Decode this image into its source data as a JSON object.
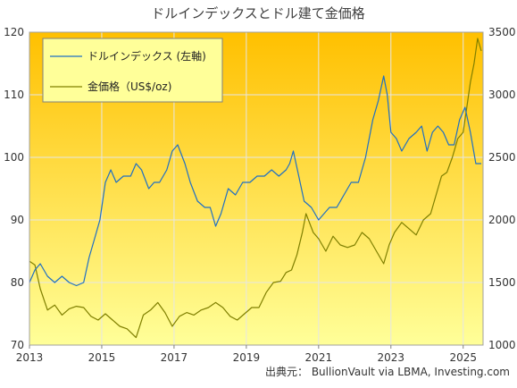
{
  "source_text": "出典元： BullionVault via LBMA, Investing.com",
  "chart_data": {
    "type": "line",
    "title": "ドルインデックスとドル建て金価格",
    "x_ticks": [
      "2013",
      "2015",
      "2017",
      "2019",
      "2021",
      "2023",
      "2025"
    ],
    "xlim": [
      2013.0,
      2025.55
    ],
    "left_axis": {
      "ylim": [
        70,
        120
      ],
      "ticks": [
        "70",
        "80",
        "90",
        "100",
        "110",
        "120"
      ]
    },
    "right_axis": {
      "ylim": [
        1000,
        3500
      ],
      "ticks": [
        "1000",
        "1500",
        "2000",
        "2500",
        "3000",
        "3500"
      ]
    },
    "grid": true,
    "legend_position": "top-left",
    "colors": {
      "background_top": "#ffc000",
      "background_bottom": "#ffff99",
      "dollar_index": "#1f6fc4",
      "gold": "#7f7f00",
      "grid": "#e6e6e6"
    },
    "series": [
      {
        "name": "ドルインデックス (左軸)",
        "axis": "left",
        "x": [
          2013.0,
          2013.15,
          2013.3,
          2013.5,
          2013.7,
          2013.9,
          2014.1,
          2014.3,
          2014.5,
          2014.65,
          2014.8,
          2014.95,
          2015.1,
          2015.25,
          2015.4,
          2015.6,
          2015.8,
          2015.95,
          2016.1,
          2016.3,
          2016.45,
          2016.6,
          2016.8,
          2016.95,
          2017.1,
          2017.3,
          2017.45,
          2017.65,
          2017.85,
          2018.0,
          2018.15,
          2018.3,
          2018.5,
          2018.7,
          2018.9,
          2019.1,
          2019.3,
          2019.5,
          2019.7,
          2019.9,
          2020.1,
          2020.2,
          2020.3,
          2020.45,
          2020.6,
          2020.8,
          2021.0,
          2021.15,
          2021.3,
          2021.5,
          2021.7,
          2021.9,
          2022.1,
          2022.3,
          2022.5,
          2022.65,
          2022.8,
          2022.9,
          2023.0,
          2023.15,
          2023.3,
          2023.5,
          2023.7,
          2023.85,
          2024.0,
          2024.15,
          2024.3,
          2024.45,
          2024.6,
          2024.75,
          2024.9,
          2025.05,
          2025.2,
          2025.35,
          2025.5
        ],
        "values": [
          80,
          82,
          83,
          81,
          80,
          81,
          80,
          79.5,
          80,
          84,
          87,
          90,
          96,
          98,
          96,
          97,
          97,
          99,
          98,
          95,
          96,
          96,
          98,
          101,
          102,
          99,
          96,
          93,
          92,
          92,
          89,
          91,
          95,
          94,
          96,
          96,
          97,
          97,
          98,
          97,
          98,
          99,
          101,
          97,
          93,
          92,
          90,
          91,
          92,
          92,
          94,
          96,
          96,
          100,
          106,
          109,
          113,
          110,
          104,
          103,
          101,
          103,
          104,
          105,
          101,
          104,
          105,
          104,
          102,
          102,
          106,
          108,
          104,
          99,
          99
        ]
      },
      {
        "name": "金価格（US$/oz)",
        "axis": "right",
        "x": [
          2013.0,
          2013.15,
          2013.3,
          2013.5,
          2013.7,
          2013.9,
          2014.1,
          2014.3,
          2014.5,
          2014.7,
          2014.9,
          2015.1,
          2015.3,
          2015.5,
          2015.7,
          2015.95,
          2016.15,
          2016.35,
          2016.55,
          2016.75,
          2016.95,
          2017.15,
          2017.35,
          2017.55,
          2017.75,
          2017.95,
          2018.15,
          2018.35,
          2018.55,
          2018.75,
          2018.95,
          2019.15,
          2019.35,
          2019.55,
          2019.75,
          2019.95,
          2020.1,
          2020.25,
          2020.4,
          2020.55,
          2020.65,
          2020.85,
          2021.0,
          2021.2,
          2021.4,
          2021.6,
          2021.8,
          2022.0,
          2022.2,
          2022.4,
          2022.6,
          2022.8,
          2022.95,
          2023.1,
          2023.3,
          2023.5,
          2023.7,
          2023.9,
          2024.1,
          2024.25,
          2024.4,
          2024.55,
          2024.7,
          2024.85,
          2025.0,
          2025.1,
          2025.2,
          2025.3,
          2025.4,
          2025.5
        ],
        "values": [
          1670,
          1640,
          1450,
          1280,
          1320,
          1240,
          1290,
          1310,
          1300,
          1230,
          1200,
          1250,
          1200,
          1150,
          1130,
          1060,
          1240,
          1280,
          1340,
          1260,
          1150,
          1230,
          1260,
          1240,
          1280,
          1300,
          1340,
          1300,
          1230,
          1200,
          1250,
          1300,
          1300,
          1420,
          1500,
          1510,
          1580,
          1600,
          1720,
          1900,
          2050,
          1900,
          1850,
          1750,
          1870,
          1800,
          1780,
          1800,
          1900,
          1850,
          1750,
          1650,
          1800,
          1900,
          1980,
          1930,
          1880,
          2000,
          2050,
          2200,
          2350,
          2380,
          2500,
          2650,
          2700,
          2900,
          3100,
          3250,
          3450,
          3350
        ]
      }
    ]
  }
}
